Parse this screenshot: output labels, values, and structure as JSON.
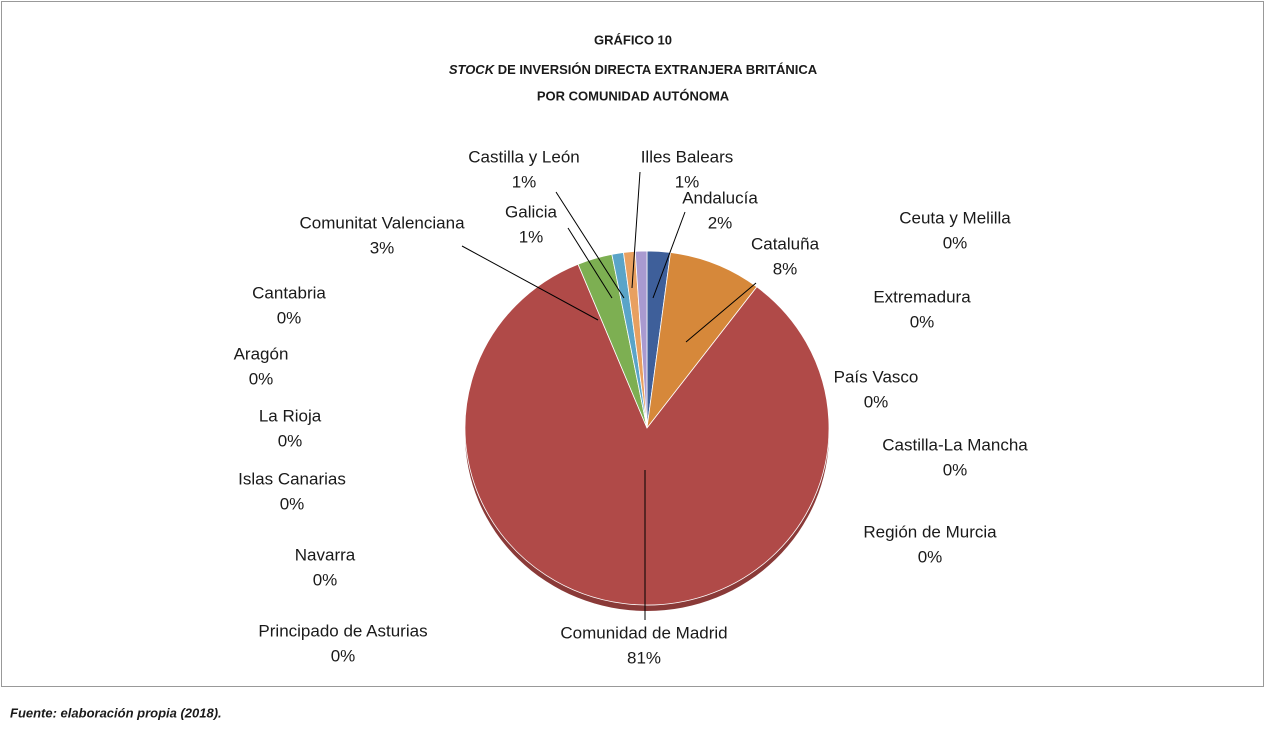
{
  "chart_data": {
    "type": "pie",
    "title": "GRÁFICO 10",
    "subtitle_italic": "STOCK",
    "subtitle": "DE INVERSIÓN DIRECTA EXTRANJERA BRITÁNICA",
    "subtitle2": "POR COMUNIDAD AUTÓNOMA",
    "source": "Fuente: elaboración propia (2018).",
    "categories": [
      "Andalucía",
      "Cataluña",
      "Ceuta y Melilla",
      "Extremadura",
      "País Vasco",
      "Castilla-La Mancha",
      "Región de Murcia",
      "Comunidad de Madrid",
      "Principado de Asturias",
      "Navarra",
      "Islas Canarias",
      "La Rioja",
      "Aragón",
      "Cantabria",
      "Comunitat Valenciana",
      "Galicia",
      "Castilla y León",
      "Illes Balears"
    ],
    "values": [
      2,
      8,
      0,
      0,
      0,
      0,
      0,
      81,
      0,
      0,
      0,
      0,
      0,
      0,
      3,
      1,
      1,
      1
    ],
    "value_labels": [
      "2%",
      "8%",
      "0%",
      "0%",
      "0%",
      "0%",
      "0%",
      "81%",
      "0%",
      "0%",
      "0%",
      "0%",
      "0%",
      "0%",
      "3%",
      "1%",
      "1%",
      "1%"
    ],
    "colors": [
      "#3e5f9a",
      "#d6883a",
      "#8aa0c8",
      "#c06060",
      "#90b060",
      "#7a6aa8",
      "#50a8c0",
      "#b04a48",
      "#8090c0",
      "#d09060",
      "#a0a0a0",
      "#c0a050",
      "#6080b0",
      "#b07070",
      "#7daf52",
      "#5aa4c8",
      "#e8a060",
      "#a99ad0"
    ]
  }
}
